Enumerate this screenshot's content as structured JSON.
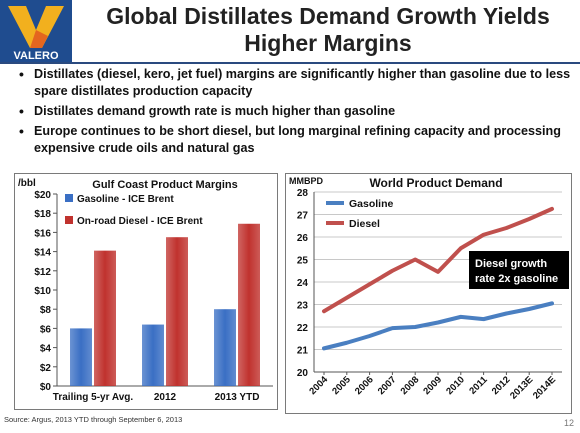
{
  "header": {
    "title_line1": "Global Distillates Demand Growth Yields",
    "title_line2": "Higher Margins",
    "logo_text": "VALERO",
    "brand_colors": {
      "blue": "#1f4c8f",
      "gold": "#f2b01e",
      "orange": "#e4661f"
    }
  },
  "bullets": [
    "Distillates (diesel, kero, jet fuel) margins are significantly higher than gasoline due to less spare distillates production capacity",
    "Distillates demand growth rate is much higher than gasoline",
    "Europe continues to be short diesel, but long marginal refining capacity and processing expensive crude oils and natural gas"
  ],
  "footer": {
    "source": "Source:  Argus, 2013 YTD through September 6, 2013",
    "page": "12"
  },
  "chart_data": [
    {
      "type": "bar",
      "title": "Gulf Coast Product Margins",
      "ylabel": "/bbl",
      "ylim": [
        0,
        20
      ],
      "yticks": [
        "$0",
        "$2",
        "$4",
        "$6",
        "$8",
        "$10",
        "$12",
        "$14",
        "$16",
        "$18",
        "$20"
      ],
      "categories": [
        "Trailing 5-yr Avg.",
        "2012",
        "2013 YTD"
      ],
      "legend_position": "top-left",
      "series": [
        {
          "name": "Gasoline - ICE Brent",
          "color": "#3a6fc4",
          "values": [
            6.0,
            6.4,
            8.0
          ]
        },
        {
          "name": "On-road Diesel - ICE Brent",
          "color": "#c0322e",
          "values": [
            14.1,
            15.5,
            16.9
          ]
        }
      ]
    },
    {
      "type": "line",
      "title": "World Product Demand",
      "ylabel": "MMBPD",
      "ylim": [
        20,
        28
      ],
      "yticks": [
        "20",
        "21",
        "22",
        "23",
        "24",
        "25",
        "26",
        "27",
        "28"
      ],
      "categories": [
        "2004",
        "2005",
        "2006",
        "2007",
        "2008",
        "2009",
        "2010",
        "2011",
        "2012",
        "2013E",
        "2014E"
      ],
      "legend_position": "top-left",
      "grid": true,
      "series": [
        {
          "name": "Gasoline",
          "color": "#4a7fc1",
          "values": [
            21.05,
            21.3,
            21.6,
            21.95,
            22.0,
            22.2,
            22.45,
            22.35,
            22.6,
            22.8,
            23.05
          ]
        },
        {
          "name": "Diesel",
          "color": "#c0504d",
          "values": [
            22.7,
            23.3,
            23.9,
            24.5,
            25.0,
            24.45,
            25.5,
            26.1,
            26.4,
            26.8,
            27.25
          ]
        }
      ],
      "annotation": {
        "line1": "Diesel growth",
        "line2": "rate 2x gasoline"
      }
    }
  ]
}
